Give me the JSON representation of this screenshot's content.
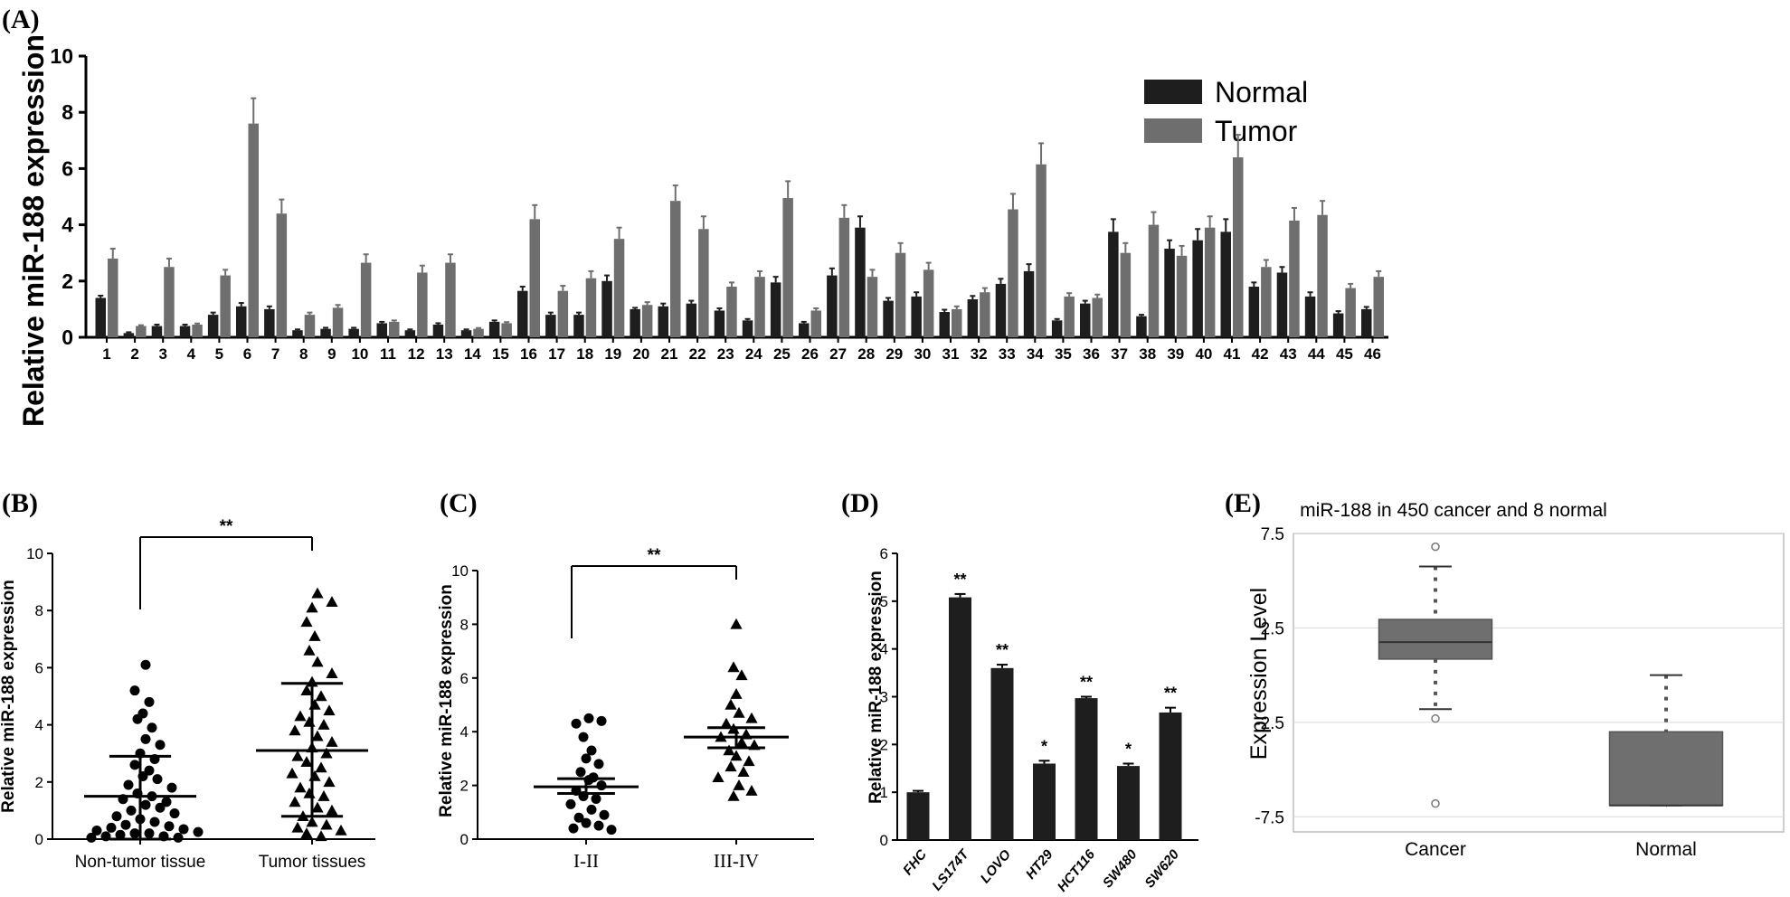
{
  "panels": {
    "a": "(A)",
    "b": "(B)",
    "c": "(C)",
    "d": "(D)",
    "e": "(E)"
  },
  "colors": {
    "normal": "#1e1e1e",
    "tumor": "#6e6e6e",
    "box": "#6f6f6f",
    "grid": "#d9d9d9"
  },
  "chart_data": [
    {
      "panel": "A",
      "type": "bar",
      "ylabel": "Relative miR-188 expression",
      "ylim": [
        0,
        10
      ],
      "yticks": [
        0,
        2,
        4,
        6,
        8,
        10
      ],
      "categories": [
        "1",
        "2",
        "3",
        "4",
        "5",
        "6",
        "7",
        "8",
        "9",
        "10",
        "11",
        "12",
        "13",
        "14",
        "15",
        "16",
        "17",
        "18",
        "19",
        "20",
        "21",
        "22",
        "23",
        "24",
        "25",
        "26",
        "27",
        "28",
        "29",
        "30",
        "31",
        "32",
        "33",
        "34",
        "35",
        "36",
        "37",
        "38",
        "39",
        "40",
        "41",
        "42",
        "43",
        "44",
        "45",
        "46"
      ],
      "legend": {
        "position": "top-right",
        "normal_label": "Normal",
        "tumor_label": "Tumor"
      },
      "series": [
        {
          "name": "Normal",
          "values": [
            1.4,
            0.15,
            0.4,
            0.4,
            0.8,
            1.1,
            1.0,
            0.25,
            0.3,
            0.3,
            0.5,
            0.25,
            0.45,
            0.25,
            0.55,
            1.65,
            0.8,
            0.8,
            2.0,
            1.0,
            1.1,
            1.2,
            0.95,
            0.6,
            1.95,
            0.5,
            2.2,
            3.9,
            1.3,
            1.45,
            0.9,
            1.35,
            1.9,
            2.35,
            0.6,
            1.2,
            3.75,
            0.75,
            3.15,
            3.45,
            3.75,
            1.8,
            2.3,
            1.45,
            0.85,
            1.0
          ],
          "errors": [
            0.08,
            0.03,
            0.05,
            0.05,
            0.08,
            0.12,
            0.1,
            0.03,
            0.04,
            0.04,
            0.05,
            0.03,
            0.05,
            0.03,
            0.05,
            0.15,
            0.08,
            0.08,
            0.2,
            0.05,
            0.1,
            0.1,
            0.08,
            0.05,
            0.2,
            0.05,
            0.25,
            0.4,
            0.1,
            0.15,
            0.08,
            0.12,
            0.18,
            0.25,
            0.05,
            0.1,
            0.45,
            0.05,
            0.3,
            0.4,
            0.45,
            0.15,
            0.2,
            0.15,
            0.08,
            0.08
          ]
        },
        {
          "name": "Tumor",
          "values": [
            2.8,
            0.4,
            2.5,
            0.45,
            2.2,
            7.6,
            4.4,
            0.8,
            1.05,
            2.65,
            0.55,
            2.3,
            2.65,
            0.3,
            0.5,
            4.2,
            1.65,
            2.1,
            3.5,
            1.15,
            4.85,
            3.85,
            1.8,
            2.15,
            4.95,
            0.95,
            4.25,
            2.15,
            3.0,
            2.4,
            1.0,
            1.6,
            4.55,
            6.15,
            1.45,
            1.4,
            3.0,
            4.0,
            2.9,
            3.9,
            6.4,
            2.5,
            4.15,
            4.35,
            1.75,
            2.15
          ],
          "errors": [
            0.35,
            0.03,
            0.3,
            0.04,
            0.2,
            0.9,
            0.5,
            0.08,
            0.1,
            0.3,
            0.05,
            0.25,
            0.3,
            0.03,
            0.04,
            0.5,
            0.18,
            0.25,
            0.4,
            0.1,
            0.55,
            0.45,
            0.15,
            0.2,
            0.6,
            0.08,
            0.45,
            0.25,
            0.35,
            0.25,
            0.1,
            0.15,
            0.55,
            0.75,
            0.12,
            0.12,
            0.35,
            0.45,
            0.35,
            0.4,
            0.8,
            0.25,
            0.45,
            0.5,
            0.15,
            0.2
          ]
        }
      ]
    },
    {
      "panel": "B",
      "type": "scatter",
      "ylabel": "Relative miR-188 expression",
      "ylim": [
        0,
        10
      ],
      "yticks": [
        0,
        2,
        4,
        6,
        8,
        10
      ],
      "categories": [
        "Non-tumor tissue",
        "Tumor tissues"
      ],
      "significance": "**",
      "groups": [
        {
          "name": "Non-tumor tissue",
          "marker": "circle",
          "mean": 1.5,
          "sd_low": 0.0,
          "sd_high": 2.9,
          "points": [
            6.1,
            5.2,
            4.8,
            4.4,
            4.2,
            3.9,
            3.5,
            3.3,
            3.0,
            2.8,
            2.6,
            2.4,
            2.2,
            2.1,
            1.9,
            1.8,
            1.6,
            1.5,
            1.4,
            1.3,
            1.2,
            1.1,
            1.0,
            0.9,
            0.8,
            0.7,
            0.6,
            0.5,
            0.45,
            0.4,
            0.35,
            0.3,
            0.25,
            0.2,
            0.2,
            0.15,
            0.1,
            0.1,
            0.05,
            0.05
          ]
        },
        {
          "name": "Tumor tissues",
          "marker": "triangle",
          "mean": 3.1,
          "sd_low": 0.8,
          "sd_high": 5.45,
          "points": [
            8.6,
            8.3,
            8.1,
            7.6,
            7.1,
            6.6,
            6.2,
            5.8,
            5.5,
            5.2,
            5.0,
            4.7,
            4.5,
            4.3,
            4.1,
            4.0,
            3.8,
            3.6,
            3.4,
            3.2,
            3.0,
            2.9,
            2.7,
            2.5,
            2.3,
            2.2,
            2.0,
            1.8,
            1.6,
            1.5,
            1.3,
            1.1,
            1.0,
            0.8,
            0.6,
            0.5,
            0.4,
            0.3,
            0.2,
            0.1
          ]
        }
      ]
    },
    {
      "panel": "C",
      "type": "scatter",
      "ylabel": "Relative miR-188 expression",
      "ylim": [
        0,
        10
      ],
      "yticks": [
        0,
        2,
        4,
        6,
        8,
        10
      ],
      "categories": [
        "I-II",
        "III-IV"
      ],
      "significance": "**",
      "groups": [
        {
          "name": "I-II",
          "marker": "circle",
          "mean": 1.95,
          "sem_low": 1.7,
          "sem_high": 2.25,
          "points": [
            4.5,
            4.4,
            4.3,
            3.8,
            3.3,
            3.0,
            2.8,
            2.5,
            2.3,
            2.2,
            2.0,
            1.8,
            1.6,
            1.5,
            1.3,
            1.1,
            0.9,
            0.8,
            0.6,
            0.5,
            0.4,
            0.35
          ]
        },
        {
          "name": "III-IV",
          "marker": "triangle",
          "mean": 3.8,
          "sem_low": 3.4,
          "sem_high": 4.15,
          "points": [
            8.0,
            6.4,
            6.1,
            5.4,
            5.0,
            4.7,
            4.5,
            4.3,
            4.1,
            3.9,
            3.8,
            3.6,
            3.5,
            3.3,
            3.1,
            2.9,
            2.7,
            2.5,
            2.3,
            2.0,
            1.8,
            1.6
          ]
        }
      ]
    },
    {
      "panel": "D",
      "type": "bar",
      "ylabel": "Relative miR-188 expression",
      "ylim": [
        0,
        6
      ],
      "yticks": [
        0,
        1,
        2,
        3,
        4,
        5,
        6
      ],
      "categories": [
        "FHC",
        "LS174T",
        "LOVO",
        "HT29",
        "HCT116",
        "SW480",
        "SW620"
      ],
      "values": [
        1.0,
        5.08,
        3.6,
        1.6,
        2.97,
        1.55,
        2.67
      ],
      "errors": [
        0.03,
        0.07,
        0.07,
        0.06,
        0.03,
        0.05,
        0.1
      ],
      "annotations": [
        "",
        "**",
        "**",
        "*",
        "**",
        "*",
        "**"
      ]
    },
    {
      "panel": "E",
      "type": "box",
      "title": "miR-188 in 450 cancer and 8 normal",
      "ylabel": "Expression Level",
      "ylim": [
        -8.3,
        7.5
      ],
      "yticks": [
        7.5,
        2.5,
        -2.5,
        -7.5
      ],
      "ytick_labels": [
        "7.5",
        "2.5",
        "-2.5",
        "-7.5"
      ],
      "grid": true,
      "categories": [
        "Cancer",
        "Normal"
      ],
      "boxes": [
        {
          "name": "Cancer",
          "q1": 0.85,
          "median": 1.75,
          "q3": 2.95,
          "whisker_low": -1.8,
          "whisker_high": 5.75,
          "outliers": [
            6.8,
            -2.3,
            -6.8
          ]
        },
        {
          "name": "Normal",
          "q1": -6.9,
          "median": -6.9,
          "q3": -3.0,
          "whisker_low": -6.9,
          "whisker_high": 0.0,
          "outliers": []
        }
      ]
    }
  ]
}
